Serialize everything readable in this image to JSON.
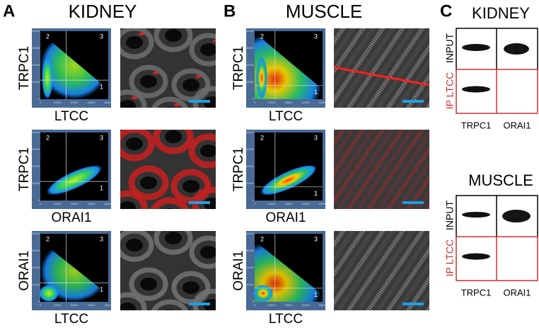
{
  "panels": [
    {
      "letter": "A",
      "title": "KIDNEY",
      "plots": [
        {
          "y_label": "TRPC1",
          "x_label": "LTCC"
        },
        {
          "y_label": "TRPC1",
          "x_label": "ORAI1"
        },
        {
          "y_label": "ORAI1",
          "x_label": "LTCC"
        }
      ]
    },
    {
      "letter": "B",
      "title": "MUSCLE",
      "plots": [
        {
          "y_label": "TRPC1",
          "x_label": "LTCC"
        },
        {
          "y_label": "TRPC1",
          "x_label": "ORAI1"
        },
        {
          "y_label": "ORAI1",
          "x_label": "LTCC"
        }
      ]
    }
  ],
  "quadrants": [
    "1",
    "2",
    "3"
  ],
  "ticks": [
    "0",
    "10000",
    "20000",
    "30000",
    "40000"
  ],
  "blots": {
    "letter": "C",
    "groups": [
      {
        "title": "KIDNEY",
        "rows": [
          "INPUT",
          "IP LTCC"
        ],
        "columns": [
          "TRPC1",
          "ORAI1"
        ]
      },
      {
        "title": "MUSCLE",
        "rows": [
          "INPUT",
          "IP LTCC"
        ],
        "columns": [
          "TRPC1",
          "ORAI1"
        ]
      }
    ]
  }
}
